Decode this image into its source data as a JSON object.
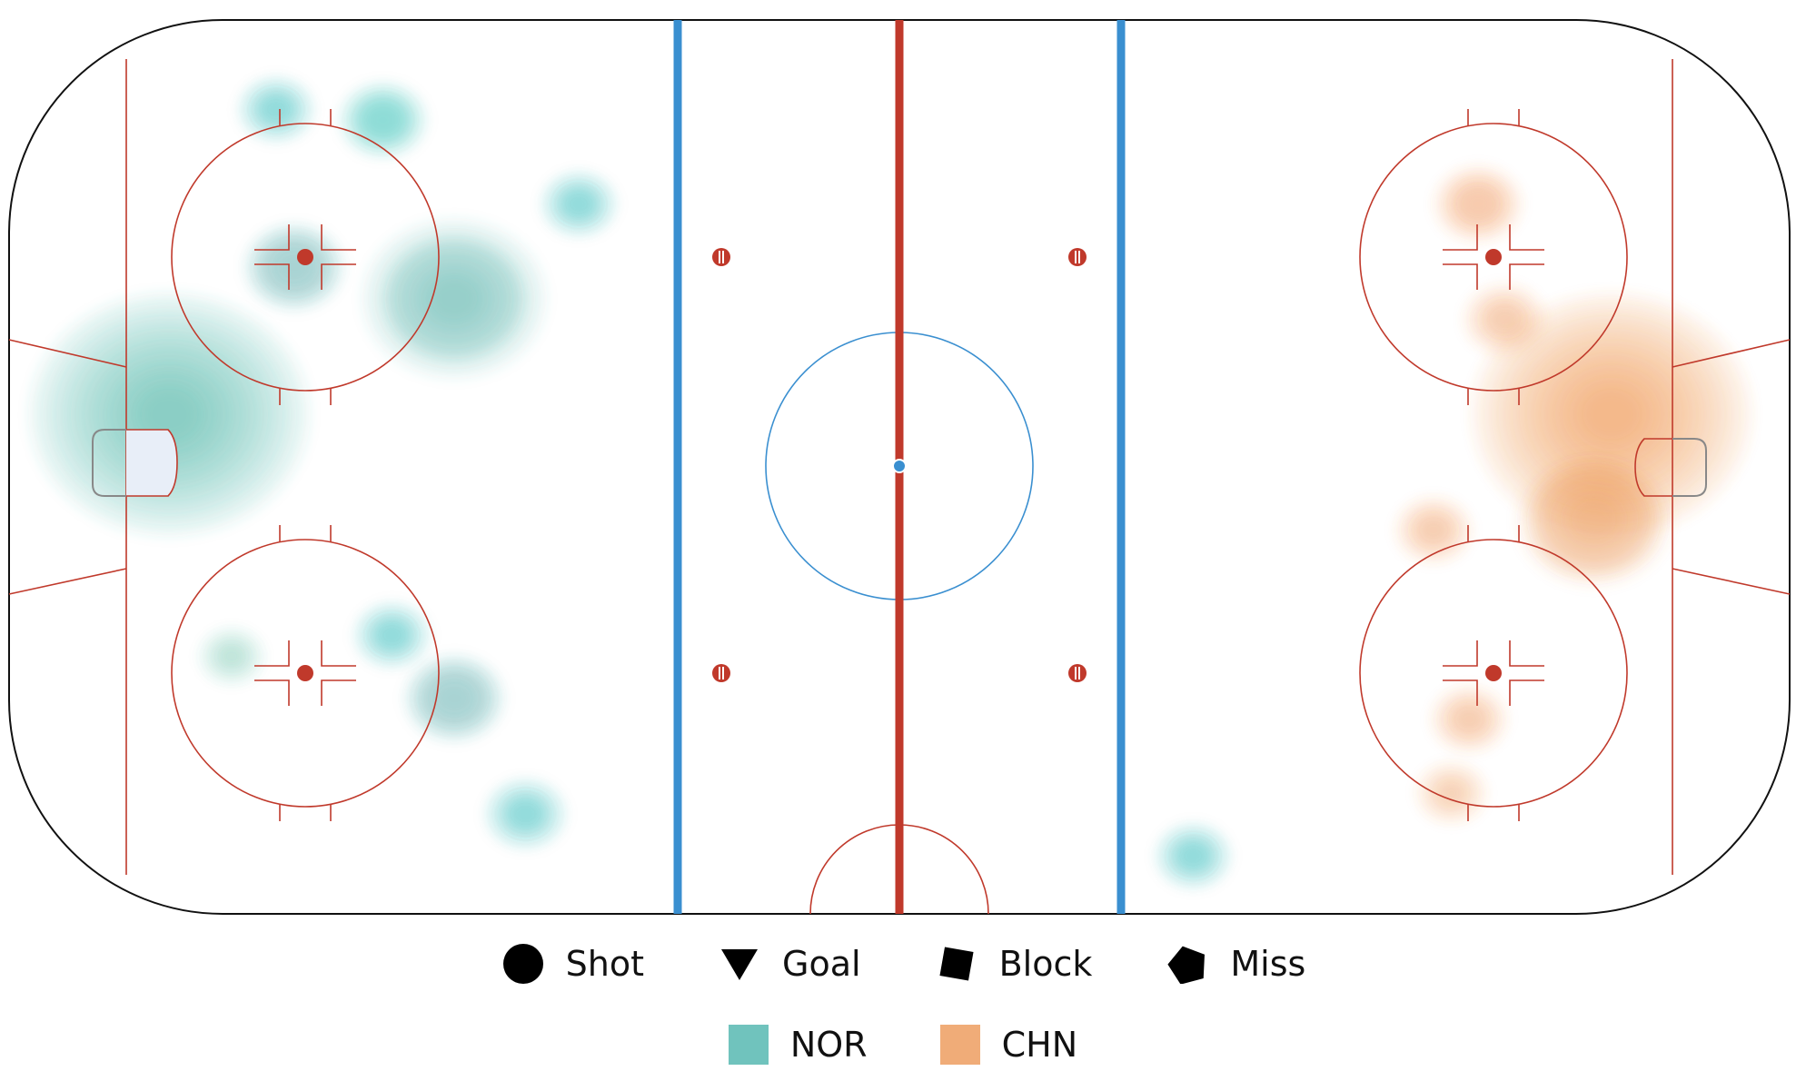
{
  "chart_data": {
    "type": "heatmap",
    "title": "",
    "xlabel": "",
    "ylabel": "",
    "legend_position": "bottom-center",
    "shot_types": [
      {
        "label": "Shot",
        "marker": "circle"
      },
      {
        "label": "Goal",
        "marker": "triangle-down"
      },
      {
        "label": "Block",
        "marker": "square"
      },
      {
        "label": "Miss",
        "marker": "pentagon"
      }
    ],
    "teams": [
      {
        "label": "NOR",
        "color": "#35aba2"
      },
      {
        "label": "CHN",
        "color": "#ea8a3f"
      }
    ],
    "series": [
      {
        "name": "NOR",
        "color": "#35aba2",
        "hotspots": [
          {
            "x": -82,
            "y": 5,
            "intensity": 1.0
          },
          {
            "x": -50,
            "y": 16,
            "intensity": 0.75
          },
          {
            "x": -68,
            "y": 19,
            "intensity": 0.45
          },
          {
            "x": -58,
            "y": 33,
            "intensity": 0.35
          },
          {
            "x": -70,
            "y": 34,
            "intensity": 0.25
          },
          {
            "x": -36,
            "y": 25,
            "intensity": 0.25
          },
          {
            "x": -50,
            "y": -22,
            "intensity": 0.45
          },
          {
            "x": -42,
            "y": -33,
            "intensity": 0.3
          },
          {
            "x": -57,
            "y": -16,
            "intensity": 0.25
          },
          {
            "x": -75,
            "y": -18,
            "intensity": 0.15
          },
          {
            "x": 33,
            "y": -37,
            "intensity": 0.25
          }
        ]
      },
      {
        "name": "CHN",
        "color": "#ea8a3f",
        "hotspots": [
          {
            "x": 80,
            "y": 5,
            "intensity": 1.0
          },
          {
            "x": 78,
            "y": -5,
            "intensity": 0.7
          },
          {
            "x": 65,
            "y": 25,
            "intensity": 0.35
          },
          {
            "x": 68,
            "y": 14,
            "intensity": 0.3
          },
          {
            "x": 60,
            "y": -6,
            "intensity": 0.25
          },
          {
            "x": 64,
            "y": -24,
            "intensity": 0.25
          },
          {
            "x": 62,
            "y": -31,
            "intensity": 0.2
          }
        ]
      }
    ],
    "rink": {
      "x_range": [
        -100,
        100
      ],
      "y_range": [
        -42.5,
        42.5
      ],
      "zones": [
        "NOR attack zone (left)",
        "neutral zone",
        "CHN attack zone (right)"
      ]
    }
  }
}
